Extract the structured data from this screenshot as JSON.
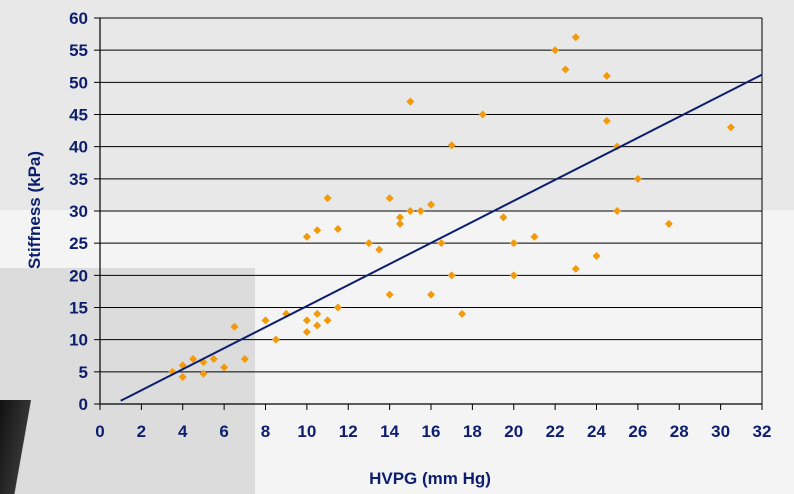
{
  "chart_data": {
    "type": "scatter",
    "title": "",
    "xlabel": "HVPG (mm Hg)",
    "ylabel": "Stiffness (kPa)",
    "xlim": [
      0,
      32
    ],
    "ylim": [
      0,
      60
    ],
    "x_ticks": [
      "0",
      "2",
      "4",
      "6",
      "8",
      "10",
      "12",
      "14",
      "16",
      "18",
      "20",
      "22",
      "24",
      "26",
      "28",
      "30",
      "32"
    ],
    "y_ticks": [
      "0",
      "5",
      "10",
      "15",
      "20",
      "25",
      "30",
      "35",
      "40",
      "45",
      "50",
      "55",
      "60"
    ],
    "grid": "horizontal",
    "series": [
      {
        "marker": "diamond",
        "color": "#f29a0c",
        "points": [
          [
            3.5,
            5
          ],
          [
            4,
            6
          ],
          [
            4,
            4.2
          ],
          [
            4.5,
            7
          ],
          [
            5,
            6.5
          ],
          [
            5,
            4.7
          ],
          [
            5.5,
            7
          ],
          [
            6,
            5.7
          ],
          [
            6.5,
            12
          ],
          [
            7,
            7
          ],
          [
            8,
            13
          ],
          [
            8.5,
            10
          ],
          [
            9,
            14
          ],
          [
            10,
            26
          ],
          [
            10,
            13
          ],
          [
            10,
            11.2
          ],
          [
            10.5,
            27
          ],
          [
            10.5,
            14
          ],
          [
            10.5,
            12.2
          ],
          [
            11,
            32
          ],
          [
            11,
            13
          ],
          [
            11.5,
            27.2
          ],
          [
            11.5,
            15
          ],
          [
            13,
            25
          ],
          [
            13.5,
            24
          ],
          [
            14,
            32
          ],
          [
            14,
            17
          ],
          [
            14.5,
            29
          ],
          [
            14.5,
            28
          ],
          [
            15,
            47
          ],
          [
            15,
            30
          ],
          [
            15.5,
            30
          ],
          [
            16,
            31
          ],
          [
            16,
            17
          ],
          [
            16.5,
            25
          ],
          [
            17,
            40.2
          ],
          [
            17,
            20
          ],
          [
            17.5,
            14
          ],
          [
            18.5,
            45
          ],
          [
            19.5,
            29
          ],
          [
            20,
            25
          ],
          [
            20,
            20
          ],
          [
            21,
            26
          ],
          [
            22,
            55
          ],
          [
            22.5,
            52
          ],
          [
            23,
            57
          ],
          [
            23,
            21
          ],
          [
            24,
            23
          ],
          [
            24.5,
            51
          ],
          [
            24.5,
            44
          ],
          [
            25,
            40
          ],
          [
            25,
            30
          ],
          [
            26,
            35
          ],
          [
            27.5,
            28
          ],
          [
            30.5,
            43
          ]
        ]
      }
    ],
    "trendline": {
      "color": "#0c1f6e",
      "points": [
        [
          1,
          0.5
        ],
        [
          32,
          51.2
        ]
      ]
    }
  }
}
